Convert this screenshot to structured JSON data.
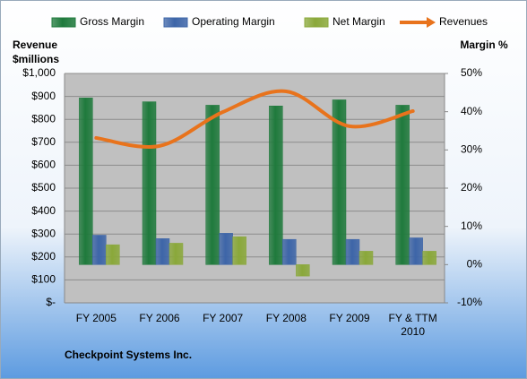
{
  "chart_data": {
    "type": "bar",
    "legend": "top",
    "y_label": [
      "Revenue",
      "$millions"
    ],
    "y2_label": "Margin %",
    "footer": "Checkpoint Systems Inc.",
    "categories": [
      "FY 2005",
      "FY 2006",
      "FY 2007",
      "FY 2008",
      "FY 2009",
      "FY & TTM 2010"
    ],
    "series": [
      {
        "name": "Gross Margin",
        "color": "#1f7a3c",
        "axis": "y2",
        "values": [
          43.6,
          42.6,
          41.7,
          41.5,
          43.1,
          41.7
        ]
      },
      {
        "name": "Operating Margin",
        "color": "#3d65a8",
        "axis": "y2",
        "values": [
          7.7,
          6.8,
          8.2,
          6.6,
          6.6,
          7.0
        ]
      },
      {
        "name": "Net Margin",
        "color": "#8aa83a",
        "axis": "y2",
        "values": [
          5.2,
          5.6,
          7.3,
          -3.0,
          3.5,
          3.5
        ]
      },
      {
        "name": "Revenues",
        "color": "#e8731c",
        "type": "line",
        "values": [
          719,
          684,
          832,
          922,
          770,
          836
        ]
      }
    ],
    "ylim": [
      0,
      1000
    ],
    "yticks": [
      {
        "value": 0,
        "label": "$-"
      },
      {
        "value": 100,
        "label": "$100"
      },
      {
        "value": 200,
        "label": "$200"
      },
      {
        "value": 300,
        "label": "$300"
      },
      {
        "value": 400,
        "label": "$400"
      },
      {
        "value": 500,
        "label": "$500"
      },
      {
        "value": 600,
        "label": "$600"
      },
      {
        "value": 700,
        "label": "$700"
      },
      {
        "value": 800,
        "label": "$800"
      },
      {
        "value": 900,
        "label": "$900"
      },
      {
        "value": 1000,
        "label": "$1,000"
      }
    ],
    "y2lim": [
      -10,
      50
    ],
    "y2ticks": [
      {
        "value": -10,
        "label": "-10%"
      },
      {
        "value": 0,
        "label": "0%"
      },
      {
        "value": 10,
        "label": "10%"
      },
      {
        "value": 20,
        "label": "20%"
      },
      {
        "value": 30,
        "label": "30%"
      },
      {
        "value": 40,
        "label": "40%"
      },
      {
        "value": 50,
        "label": "50%"
      }
    ],
    "grid": true
  }
}
